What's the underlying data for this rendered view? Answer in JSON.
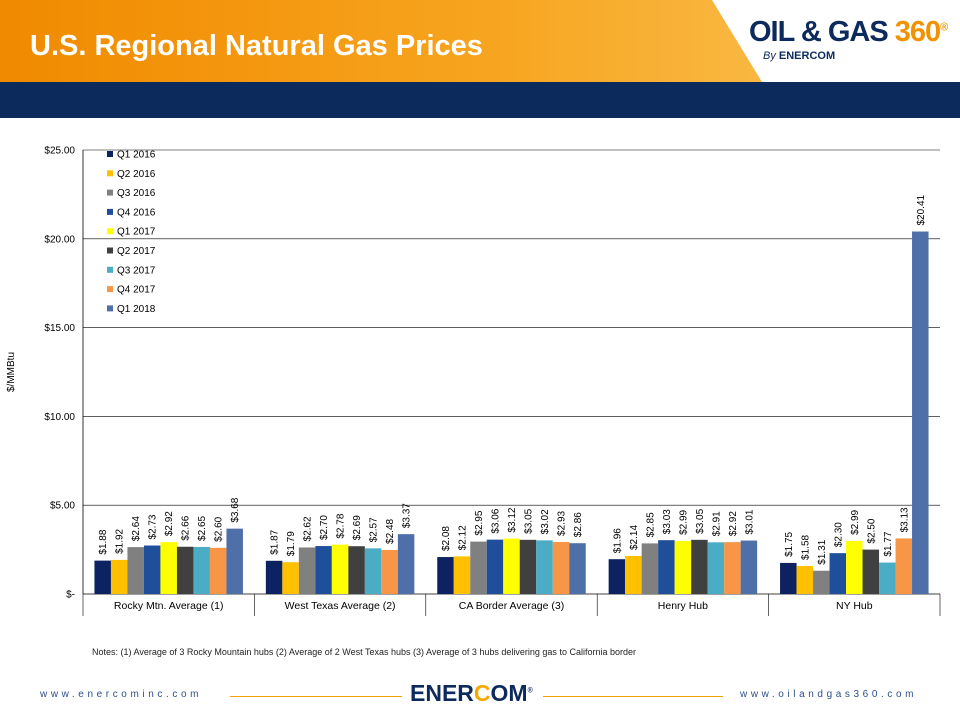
{
  "slide": {
    "title": "U.S. Regional Natural Gas Prices",
    "logo_main_a": "OIL & GAS ",
    "logo_main_b": "360",
    "logo_reg": "®",
    "logo_sub_by": "By ",
    "logo_sub_brand": "ENERCOM",
    "notes": "Notes: (1) Average of 3 Rocky Mountain hubs (2) Average of 2 West Texas hubs (3) Average of 3 hubs delivering gas to California border",
    "footer_left": "www.enercominc.com",
    "footer_right": "www.oilandgas360.com",
    "footer_logo_a": "ENER",
    "footer_logo_sun": "C",
    "footer_logo_b": "OM",
    "footer_logo_reg": "®"
  },
  "colors": {
    "header_orange": "#f39c12",
    "header_navy": "#0d2a5c",
    "accent_orange": "#f0a000"
  },
  "chart_data": {
    "type": "bar",
    "title": "",
    "xlabel": "",
    "ylabel": "$/MMBtu",
    "ylim": [
      0,
      25
    ],
    "yticks": [
      0,
      5,
      10,
      15,
      20,
      25
    ],
    "ytick_labels": [
      "$-",
      "$5.00",
      "$10.00",
      "$15.00",
      "$20.00",
      "$25.00"
    ],
    "grid": true,
    "legend_position": "top-left",
    "categories": [
      "Rocky Mtn. Average (1)",
      "West Texas Average (2)",
      "CA Border Average (3)",
      "Henry Hub",
      "NY Hub"
    ],
    "series": [
      {
        "name": "Q1 2016",
        "color": "#0d2260",
        "values": [
          1.88,
          1.87,
          2.08,
          1.96,
          1.75
        ],
        "labels": [
          "$1.88",
          "$1.87",
          "$2.08",
          "$1.96",
          "$1.75"
        ]
      },
      {
        "name": "Q2 2016",
        "color": "#ffc000",
        "values": [
          1.92,
          1.79,
          2.12,
          2.14,
          1.58
        ],
        "labels": [
          "$1.92",
          "$1.79",
          "$2.12",
          "$2.14",
          "$1.58"
        ]
      },
      {
        "name": "Q3 2016",
        "color": "#808080",
        "values": [
          2.64,
          2.62,
          2.95,
          2.85,
          1.31
        ],
        "labels": [
          "$2.64",
          "$2.62",
          "$2.95",
          "$2.85",
          "$1.31"
        ]
      },
      {
        "name": "Q4 2016",
        "color": "#1f4e9a",
        "values": [
          2.73,
          2.7,
          3.06,
          3.03,
          2.3
        ],
        "labels": [
          "$2.73",
          "$2.70",
          "$3.06",
          "$3.03",
          "$2.30"
        ]
      },
      {
        "name": "Q1 2017",
        "color": "#ffff00",
        "values": [
          2.92,
          2.78,
          3.12,
          2.99,
          2.99
        ],
        "labels": [
          "$2.92",
          "$2.78",
          "$3.12",
          "$2.99",
          "$2.99"
        ]
      },
      {
        "name": "Q2 2017",
        "color": "#404040",
        "values": [
          2.66,
          2.69,
          3.05,
          3.05,
          2.5
        ],
        "labels": [
          "$2.66",
          "$2.69",
          "$3.05",
          "$3.05",
          "$2.50"
        ]
      },
      {
        "name": "Q3 2017",
        "color": "#4bacc6",
        "values": [
          2.65,
          2.57,
          3.02,
          2.91,
          1.77
        ],
        "labels": [
          "$2.65",
          "$2.57",
          "$3.02",
          "$2.91",
          "$1.77"
        ]
      },
      {
        "name": "Q4 2017",
        "color": "#f79646",
        "values": [
          2.6,
          2.48,
          2.93,
          2.92,
          3.13
        ],
        "labels": [
          "$2.60",
          "$2.48",
          "$2.93",
          "$2.92",
          "$3.13"
        ]
      },
      {
        "name": "Q1 2018",
        "color": "#4f6fa8",
        "values": [
          3.68,
          3.37,
          2.86,
          3.01,
          20.41
        ],
        "labels": [
          "$3.68",
          "$3.37",
          "$2.86",
          "$3.01",
          "$20.41"
        ]
      }
    ]
  }
}
